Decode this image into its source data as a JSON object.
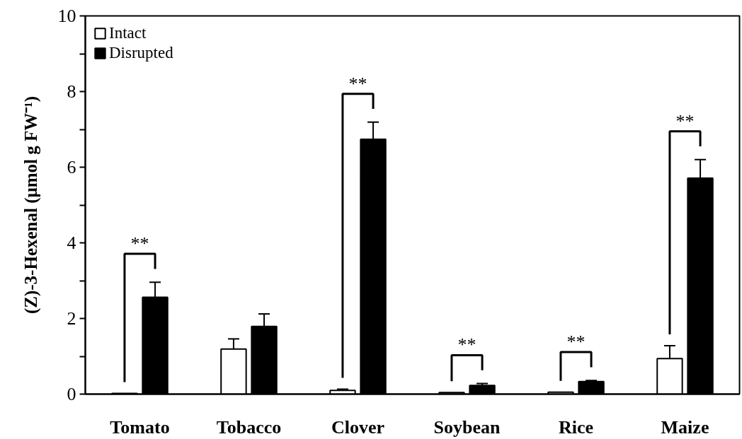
{
  "chart_data": {
    "type": "bar",
    "ylabel": "(Z)-3-Hexenal (μmol g FW⁻¹)",
    "categories": [
      "Tomato",
      "Tobacco",
      "Clover",
      "Soybean",
      "Rice",
      "Maize"
    ],
    "series": [
      {
        "name": "Intact",
        "color": "#ffffff",
        "values": [
          0.02,
          1.19,
          0.1,
          0.04,
          0.05,
          0.94
        ],
        "errors": [
          null,
          0.27,
          0.03,
          null,
          null,
          0.34
        ]
      },
      {
        "name": "Disrupted",
        "color": "#000000",
        "values": [
          2.56,
          1.79,
          6.74,
          0.23,
          0.33,
          5.71
        ],
        "errors": [
          0.4,
          0.33,
          0.45,
          0.05,
          0.03,
          0.49
        ]
      }
    ],
    "ylim": [
      0,
      10
    ],
    "yticks": [
      0,
      {
        "value": 1,
        "label": null
      },
      2,
      {
        "value": 3,
        "label": null
      },
      4,
      {
        "value": 5,
        "label": null
      },
      6,
      {
        "value": 7,
        "label": null
      },
      8,
      {
        "value": 9,
        "label": null
      },
      10
    ],
    "grid": false,
    "legend": "top left",
    "annotations": [
      {
        "text": "**",
        "x": "Tomato",
        "y": 2.56
      },
      {
        "text": "**",
        "x": "Clover",
        "y": 6.74
      },
      {
        "text": "**",
        "x": "Soybean",
        "y": 0.23
      },
      {
        "text": "**",
        "x": "Rice",
        "y": 0.33
      },
      {
        "text": "**",
        "x": "Maize",
        "y": 5.71
      }
    ]
  }
}
